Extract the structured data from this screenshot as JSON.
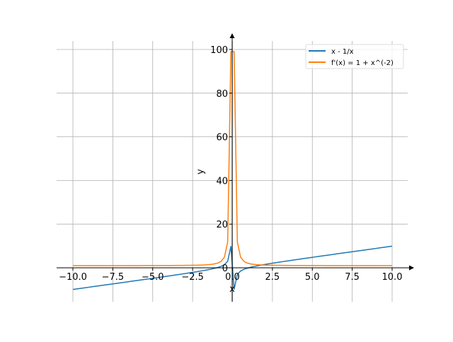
{
  "chart_data": {
    "type": "line",
    "title": "",
    "xlabel": "x",
    "ylabel": "y",
    "xlim": [
      -11,
      11
    ],
    "ylim": [
      -15,
      107
    ],
    "grid": true,
    "legend_position": "top-right",
    "x_sampling": {
      "start": -10,
      "end": 10,
      "count": 100
    },
    "xticks": [
      -10,
      -7.5,
      -5,
      -2.5,
      0,
      2.5,
      5,
      7.5,
      10
    ],
    "xtick_labels": [
      "−10.0",
      "−7.5",
      "−5.0",
      "−2.5",
      "0.0",
      "2.5",
      "5.0",
      "7.5",
      "10.0"
    ],
    "yticks": [
      0,
      20,
      40,
      60,
      80,
      100
    ],
    "ytick_labels": [
      "0",
      "20",
      "40",
      "60",
      "80",
      "100"
    ],
    "series": [
      {
        "name": "x - 1/x",
        "expr": "x - 1/x",
        "color": "#1f77b4"
      },
      {
        "name": "f'(x) = 1 + x^(-2)",
        "expr": "1 + x^(-2)",
        "color": "#ff7f0e"
      }
    ]
  }
}
